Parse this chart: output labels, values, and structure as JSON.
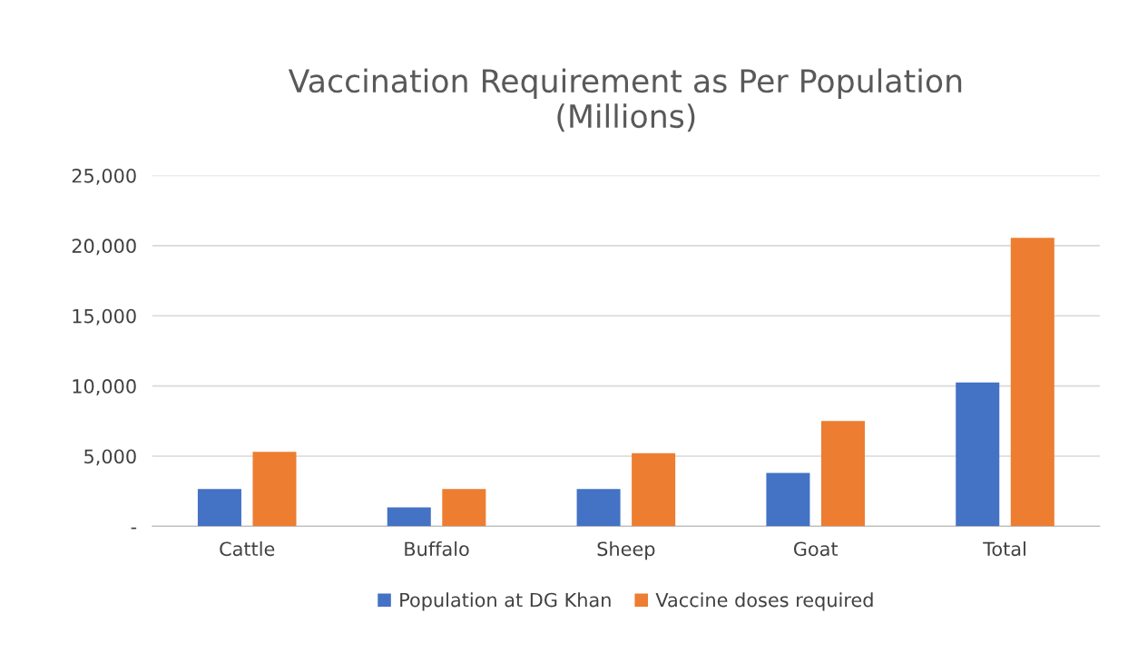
{
  "chart_data": {
    "type": "bar",
    "title": "Vaccination Requirement as Per Population\n(Millions)",
    "categories": [
      "Cattle",
      "Buffalo",
      "Sheep",
      "Goat",
      "Total"
    ],
    "series": [
      {
        "name": "Population at DG Khan",
        "color": "#4472c4",
        "values": [
          2650,
          1350,
          2650,
          3800,
          10250
        ]
      },
      {
        "name": "Vaccine doses required",
        "color": "#ed7d31",
        "values": [
          5300,
          2650,
          5200,
          7500,
          20550
        ]
      }
    ],
    "ylim": [
      0,
      25000
    ],
    "yticks": [
      {
        "value": 0,
        "label": "-"
      },
      {
        "value": 5000,
        "label": "5,000"
      },
      {
        "value": 10000,
        "label": "10,000"
      },
      {
        "value": 15000,
        "label": "15,000"
      },
      {
        "value": 20000,
        "label": "20,000"
      },
      {
        "value": 25000,
        "label": "25,000"
      }
    ],
    "grid": "y",
    "legend": "bottom"
  }
}
